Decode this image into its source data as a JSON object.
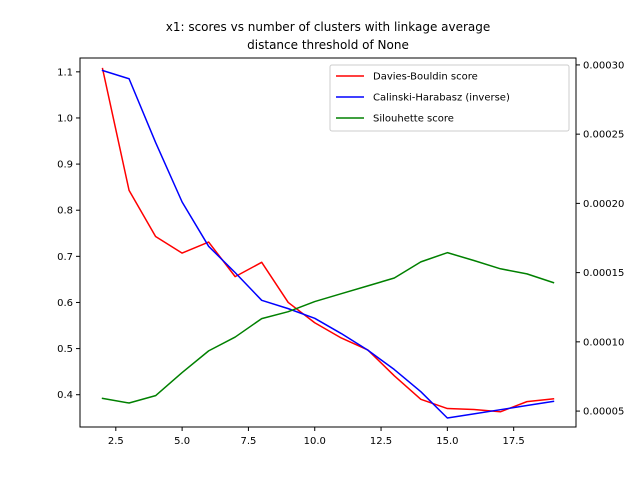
{
  "chart_data": {
    "type": "line",
    "title_line1": "x1: scores vs number of clusters with linkage average",
    "title_line2": "distance threshold of None",
    "x": [
      2,
      3,
      4,
      5,
      6,
      7,
      8,
      9,
      10,
      11,
      12,
      13,
      14,
      15,
      16,
      17,
      18,
      19
    ],
    "xlim": [
      1.15,
      19.85
    ],
    "xticks": [
      2.5,
      5.0,
      7.5,
      10.0,
      12.5,
      15.0,
      17.5
    ],
    "xtick_labels": [
      "2.5",
      "5.0",
      "7.5",
      "10.0",
      "12.5",
      "15.0",
      "17.5"
    ],
    "y_left": {
      "ylim": [
        0.33,
        1.13
      ],
      "ticks": [
        0.4,
        0.5,
        0.6,
        0.7,
        0.8,
        0.9,
        1.0,
        1.1
      ],
      "tick_labels": [
        "0.4",
        "0.5",
        "0.6",
        "0.7",
        "0.8",
        "0.9",
        "1.0",
        "1.1"
      ]
    },
    "y_right": {
      "ylim": [
        3.85e-05,
        0.000305
      ],
      "ticks": [
        5e-05,
        0.0001,
        0.00015,
        0.0002,
        0.00025,
        0.0003
      ],
      "tick_labels": [
        "0.00005",
        "0.00010",
        "0.00015",
        "0.00020",
        "0.00025",
        "0.00030"
      ]
    },
    "series": [
      {
        "name": "Davies-Bouldin score",
        "axis": "left",
        "color": "#ff0000",
        "values": [
          1.107,
          0.843,
          0.743,
          0.707,
          0.731,
          0.656,
          0.687,
          0.6,
          0.556,
          0.523,
          0.497,
          0.441,
          0.39,
          0.37,
          0.368,
          0.363,
          0.385,
          0.391
        ]
      },
      {
        "name": "Calinski-Harabasz (inverse)",
        "axis": "right",
        "color": "#0000ff",
        "values": [
          0.000296,
          0.00029,
          0.000244,
          0.000201,
          0.000169,
          0.00015,
          0.00013,
          0.000124,
          0.000117,
          0.000106,
          9.4e-05,
          8e-05,
          6.4e-05,
          4.5e-05,
          4.8e-05,
          5.1e-05,
          5.4e-05,
          5.7e-05
        ]
      },
      {
        "name": "Silouhette score",
        "axis": "left",
        "color": "#008000",
        "values": [
          0.392,
          0.382,
          0.398,
          0.448,
          0.495,
          0.525,
          0.565,
          0.58,
          0.602,
          0.619,
          0.636,
          0.653,
          0.688,
          0.708,
          0.691,
          0.673,
          0.662,
          0.643
        ]
      }
    ],
    "legend_position": "top-right",
    "grid": false
  }
}
